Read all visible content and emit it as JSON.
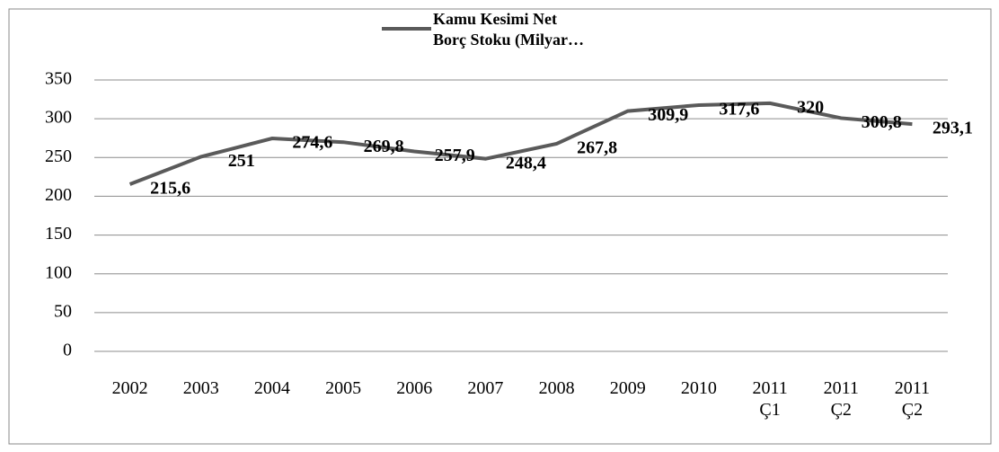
{
  "chart_data": {
    "type": "line",
    "categories": [
      "2002",
      "2003",
      "2004",
      "2005",
      "2006",
      "2007",
      "2008",
      "2009",
      "2010",
      "2011 Ç1",
      "2011 Ç2",
      "2011 Ç2"
    ],
    "series": [
      {
        "name": "Kamu Kesimi Net Borç Stoku (Milyar…",
        "color": "#5a5a5a",
        "values": [
          215.6,
          251,
          274.6,
          269.8,
          257.9,
          248.4,
          267.8,
          309.9,
          317.6,
          320,
          300.8,
          293.1
        ],
        "value_labels": [
          "215,6",
          "251",
          "274,6",
          "269,8",
          "257,9",
          "248,4",
          "267,8",
          "309,9",
          "317,6",
          "320",
          "300,8",
          "293,1"
        ]
      }
    ],
    "ylim": [
      0,
      350
    ],
    "yticks": [
      0,
      50,
      100,
      150,
      200,
      250,
      300,
      350
    ],
    "grid": true,
    "legend": "top"
  }
}
